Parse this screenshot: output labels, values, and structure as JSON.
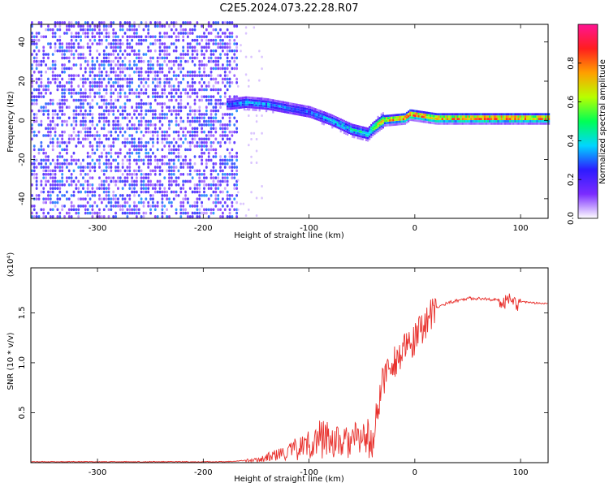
{
  "title": "C2E5.2024.073.22.28.R07",
  "chart_data": [
    {
      "type": "heatmap",
      "xlabel": "Height of straight line (km)",
      "ylabel": "Frequency (Hz)",
      "xlim": [
        -363,
        126
      ],
      "ylim": [
        -50,
        49
      ],
      "xticks": [
        -300,
        -200,
        -100,
        0,
        100
      ],
      "yticks": [
        -40,
        -20,
        0,
        20,
        40
      ],
      "colorbar": {
        "label": "Normalized spectral amplitude",
        "range": [
          0,
          1
        ],
        "ticks": [
          0.0,
          0.2,
          0.4,
          0.6,
          0.8
        ],
        "colors": [
          "#ffffff",
          "#7b2cff",
          "#2d1bff",
          "#00d6ff",
          "#00ff55",
          "#b8ff00",
          "#ff9f00",
          "#ff1e1e",
          "#ff1493"
        ]
      },
      "ridge": [
        {
          "x": -175,
          "f": 8,
          "a": 0.3
        },
        {
          "x": -160,
          "f": 9,
          "a": 0.35
        },
        {
          "x": -140,
          "f": 8,
          "a": 0.35
        },
        {
          "x": -120,
          "f": 6,
          "a": 0.3
        },
        {
          "x": -100,
          "f": 4,
          "a": 0.3
        },
        {
          "x": -80,
          "f": 0,
          "a": 0.35
        },
        {
          "x": -60,
          "f": -5,
          "a": 0.4
        },
        {
          "x": -45,
          "f": -7,
          "a": 0.45
        },
        {
          "x": -40,
          "f": -4,
          "a": 0.55
        },
        {
          "x": -30,
          "f": 0,
          "a": 0.7
        },
        {
          "x": -10,
          "f": 1,
          "a": 0.8
        },
        {
          "x": -5,
          "f": 3,
          "a": 0.8
        },
        {
          "x": 20,
          "f": 1,
          "a": 0.75
        },
        {
          "x": 60,
          "f": 1,
          "a": 0.8
        },
        {
          "x": 90,
          "f": 1,
          "a": 0.8
        },
        {
          "x": 126,
          "f": 1,
          "a": 0.75
        }
      ]
    },
    {
      "type": "line",
      "xlabel": "Height of straight line (km)",
      "ylabel": "SNR (10 * v/v)",
      "y_multiplier": "(x10⁴)",
      "xlim": [
        -363,
        126
      ],
      "ylim": [
        0,
        1.95
      ],
      "xticks": [
        -300,
        -200,
        -100,
        0,
        100
      ],
      "yticks": [
        0.5,
        1.0,
        1.5
      ],
      "ytick_labels": [
        "0.5",
        "1.0",
        "1.5"
      ],
      "color": "#e8302c",
      "x": [
        -363,
        -300,
        -200,
        -180,
        -150,
        -140,
        -120,
        -100,
        -85,
        -70,
        -60,
        -45,
        -40,
        -35,
        -30,
        -25,
        -20,
        -10,
        0,
        10,
        20,
        30,
        50,
        70,
        85,
        90,
        95,
        100,
        110,
        126
      ],
      "y": [
        0.01,
        0.01,
        0.01,
        0.01,
        0.03,
        0.06,
        0.12,
        0.22,
        0.3,
        0.22,
        0.25,
        0.3,
        0.18,
        0.6,
        0.85,
        1.0,
        1.05,
        1.15,
        1.25,
        1.45,
        1.55,
        1.6,
        1.65,
        1.64,
        1.62,
        1.7,
        1.6,
        1.62,
        1.6,
        1.6
      ]
    }
  ]
}
